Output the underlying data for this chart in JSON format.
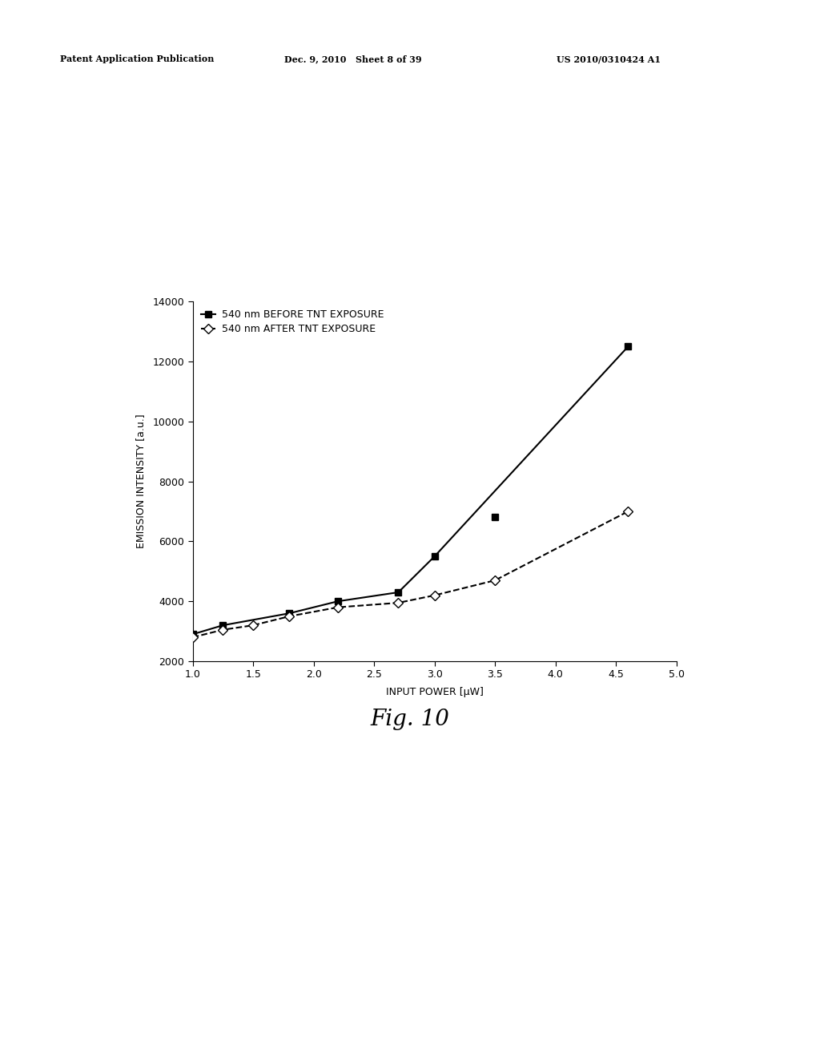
{
  "header_left": "Patent Application Publication",
  "header_mid": "Dec. 9, 2010   Sheet 8 of 39",
  "header_right": "US 2010/0310424 A1",
  "fig_label": "Fig. 10",
  "xlabel": "INPUT POWER [μW]",
  "ylabel": "EMISSION INTENSITY [a.u.]",
  "xlim": [
    1.0,
    5.0
  ],
  "ylim": [
    2000,
    14000
  ],
  "xticks": [
    1.0,
    1.5,
    2.0,
    2.5,
    3.0,
    3.5,
    4.0,
    4.5,
    5.0
  ],
  "yticks": [
    2000,
    4000,
    6000,
    8000,
    10000,
    12000,
    14000
  ],
  "series1_label": "540 nm BEFORE TNT EXPOSURE",
  "series2_label": "540 nm AFTER TNT EXPOSURE",
  "series1_x": [
    1.0,
    1.25,
    1.8,
    2.2,
    2.7,
    3.0,
    3.5,
    4.6
  ],
  "series1_y": [
    2900,
    3200,
    3600,
    4000,
    4300,
    5500,
    6800,
    12500
  ],
  "series1_line_x": [
    1.0,
    1.25,
    1.8,
    2.2,
    2.7,
    3.0,
    4.6
  ],
  "series1_line_y": [
    2900,
    3200,
    3600,
    4000,
    4300,
    5500,
    12500
  ],
  "series2_x": [
    1.0,
    1.25,
    1.5,
    1.8,
    2.2,
    2.7,
    3.0,
    3.5,
    4.6
  ],
  "series2_y": [
    2800,
    3050,
    3200,
    3500,
    3800,
    3950,
    4200,
    4700,
    7000
  ],
  "series1_color": "#000000",
  "series2_color": "#000000",
  "background_color": "#ffffff",
  "line1_style": "-",
  "line2_style": "--",
  "header_fontsize": 8,
  "axis_fontsize": 9,
  "tick_fontsize": 9,
  "legend_fontsize": 9,
  "figlabel_fontsize": 20
}
